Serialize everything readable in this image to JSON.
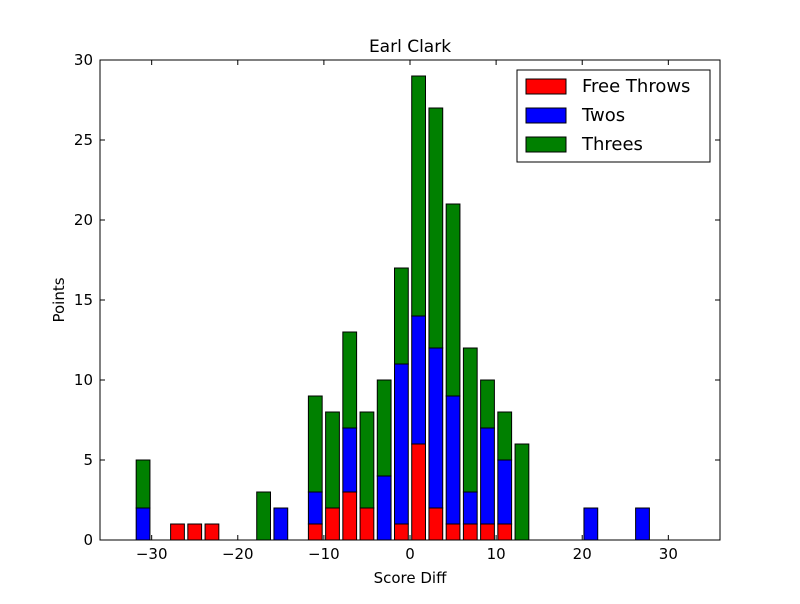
{
  "chart_data": {
    "type": "bar",
    "stacked": true,
    "title": "Earl Clark",
    "xlabel": "Score Diff",
    "ylabel": "Points",
    "xlim": [
      -36,
      36
    ],
    "ylim": [
      0,
      30
    ],
    "xticks": [
      -30,
      -20,
      -10,
      0,
      10,
      20,
      30
    ],
    "xtick_labels": [
      "−30",
      "−20",
      "−10",
      "0",
      "10",
      "20",
      "30"
    ],
    "yticks": [
      0,
      5,
      10,
      15,
      20,
      25,
      30
    ],
    "legend_position": "top-right",
    "bin_width": 2,
    "bins": [
      -35,
      -33,
      -31,
      -29,
      -27,
      -25,
      -23,
      -21,
      -19,
      -17,
      -15,
      -13,
      -11,
      -9,
      -7,
      -5,
      -3,
      -1,
      1,
      3,
      5,
      7,
      9,
      11,
      13,
      15,
      17,
      19,
      21,
      23,
      25,
      27,
      29,
      31,
      33
    ],
    "series": [
      {
        "name": "Free Throws",
        "color": "#ff0000",
        "values": [
          0,
          0,
          0,
          0,
          1,
          1,
          1,
          0,
          0,
          0,
          0,
          0,
          1,
          2,
          3,
          2,
          0,
          1,
          6,
          2,
          1,
          1,
          1,
          1,
          0,
          0,
          0,
          0,
          0,
          0,
          0,
          0,
          0,
          0,
          0
        ]
      },
      {
        "name": "Twos",
        "color": "#0000ff",
        "values": [
          0,
          0,
          2,
          0,
          0,
          0,
          0,
          0,
          0,
          0,
          2,
          0,
          2,
          0,
          4,
          0,
          4,
          10,
          8,
          10,
          8,
          2,
          6,
          4,
          0,
          0,
          0,
          0,
          2,
          0,
          0,
          2,
          0,
          0,
          0
        ]
      },
      {
        "name": "Threes",
        "color": "#008000",
        "values": [
          0,
          0,
          3,
          0,
          0,
          0,
          0,
          0,
          0,
          3,
          0,
          0,
          6,
          6,
          6,
          6,
          6,
          6,
          15,
          15,
          12,
          9,
          3,
          3,
          6,
          0,
          0,
          0,
          0,
          0,
          0,
          0,
          0,
          0,
          0
        ]
      }
    ]
  }
}
